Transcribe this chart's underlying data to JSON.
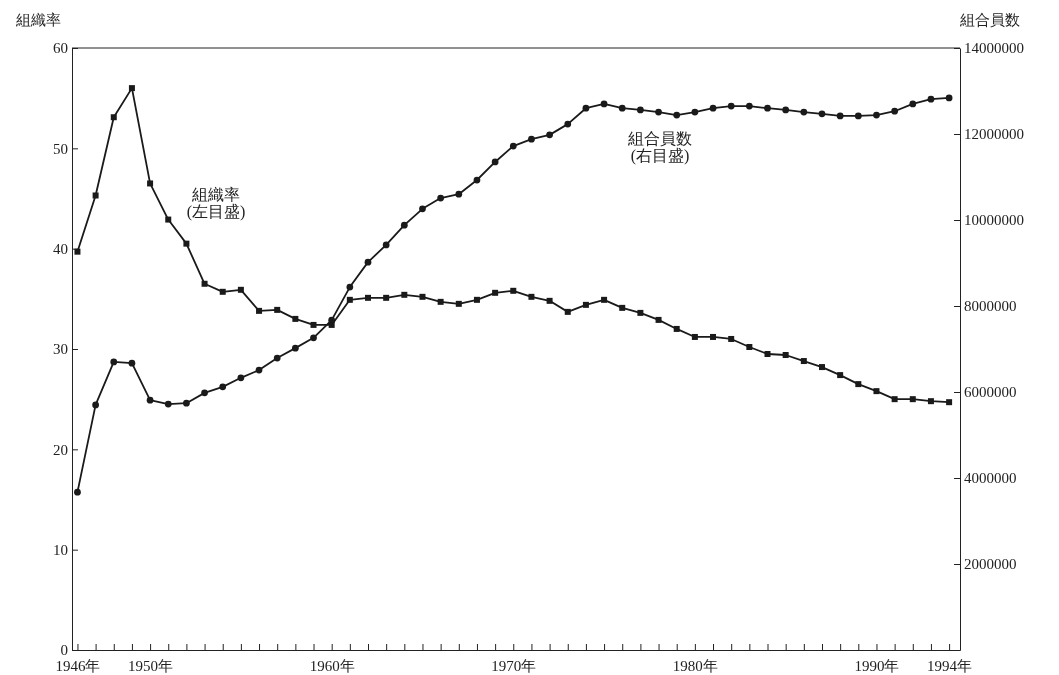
{
  "chart_data": {
    "type": "line",
    "ylabel": "組織率",
    "y2label": "組合員数",
    "x": [
      1946,
      1947,
      1948,
      1949,
      1950,
      1951,
      1952,
      1953,
      1954,
      1955,
      1956,
      1957,
      1958,
      1959,
      1960,
      1961,
      1962,
      1963,
      1964,
      1965,
      1966,
      1967,
      1968,
      1969,
      1970,
      1971,
      1972,
      1973,
      1974,
      1975,
      1976,
      1977,
      1978,
      1979,
      1980,
      1981,
      1982,
      1983,
      1984,
      1985,
      1986,
      1987,
      1988,
      1989,
      1990,
      1991,
      1992,
      1993,
      1994
    ],
    "series": [
      {
        "color": "#1a1a1a",
        "marker": "square",
        "axis": "y",
        "values": [
          39.7,
          45.3,
          53.1,
          56.0,
          46.5,
          42.9,
          40.5,
          36.5,
          35.7,
          35.9,
          33.8,
          33.9,
          33.0,
          32.4,
          32.4,
          34.9,
          35.1,
          35.1,
          35.4,
          35.2,
          34.7,
          34.5,
          34.9,
          35.6,
          35.8,
          35.2,
          34.8,
          33.7,
          34.4,
          34.9,
          34.1,
          33.6,
          32.9,
          32.0,
          31.2,
          31.2,
          31.0,
          30.2,
          29.5,
          29.4,
          28.8,
          28.2,
          27.4,
          26.5,
          25.8,
          25.0,
          25.0,
          24.8,
          24.7
        ]
      },
      {
        "color": "#1a1a1a",
        "marker": "circle",
        "axis": "y2",
        "values": [
          3670000,
          5700000,
          6700000,
          6670000,
          5810000,
          5720000,
          5740000,
          5980000,
          6120000,
          6330000,
          6510000,
          6790000,
          7020000,
          7260000,
          7670000,
          8440000,
          9020000,
          9420000,
          9880000,
          10260000,
          10510000,
          10600000,
          10930000,
          11350000,
          11720000,
          11880000,
          11980000,
          12230000,
          12600000,
          12700000,
          12600000,
          12560000,
          12510000,
          12440000,
          12510000,
          12600000,
          12650000,
          12650000,
          12600000,
          12560000,
          12510000,
          12470000,
          12420000,
          12420000,
          12440000,
          12530000,
          12700000,
          12810000,
          12840000
        ]
      }
    ],
    "xlim": [
      1945.7,
      1994.6
    ],
    "xticks": [
      {
        "value": 1946,
        "label": "1946年"
      },
      {
        "value": 1947,
        "label": null
      },
      {
        "value": 1948,
        "label": null
      },
      {
        "value": 1949,
        "label": null
      },
      {
        "value": 1950,
        "label": "1950年"
      },
      {
        "value": 1951,
        "label": null
      },
      {
        "value": 1952,
        "label": null
      },
      {
        "value": 1953,
        "label": null
      },
      {
        "value": 1954,
        "label": null
      },
      {
        "value": 1955,
        "label": null
      },
      {
        "value": 1956,
        "label": null
      },
      {
        "value": 1957,
        "label": null
      },
      {
        "value": 1958,
        "label": null
      },
      {
        "value": 1959,
        "label": null
      },
      {
        "value": 1960,
        "label": "1960年"
      },
      {
        "value": 1961,
        "label": null
      },
      {
        "value": 1962,
        "label": null
      },
      {
        "value": 1963,
        "label": null
      },
      {
        "value": 1964,
        "label": null
      },
      {
        "value": 1965,
        "label": null
      },
      {
        "value": 1966,
        "label": null
      },
      {
        "value": 1967,
        "label": null
      },
      {
        "value": 1968,
        "label": null
      },
      {
        "value": 1969,
        "label": null
      },
      {
        "value": 1970,
        "label": "1970年"
      },
      {
        "value": 1971,
        "label": null
      },
      {
        "value": 1972,
        "label": null
      },
      {
        "value": 1973,
        "label": null
      },
      {
        "value": 1974,
        "label": null
      },
      {
        "value": 1975,
        "label": null
      },
      {
        "value": 1976,
        "label": null
      },
      {
        "value": 1977,
        "label": null
      },
      {
        "value": 1978,
        "label": null
      },
      {
        "value": 1979,
        "label": null
      },
      {
        "value": 1980,
        "label": "1980年"
      },
      {
        "value": 1981,
        "label": null
      },
      {
        "value": 1982,
        "label": null
      },
      {
        "value": 1983,
        "label": null
      },
      {
        "value": 1984,
        "label": null
      },
      {
        "value": 1985,
        "label": null
      },
      {
        "value": 1986,
        "label": null
      },
      {
        "value": 1987,
        "label": null
      },
      {
        "value": 1988,
        "label": null
      },
      {
        "value": 1989,
        "label": null
      },
      {
        "value": 1990,
        "label": "1990年"
      },
      {
        "value": 1991,
        "label": null
      },
      {
        "value": 1992,
        "label": null
      },
      {
        "value": 1993,
        "label": null
      },
      {
        "value": 1994,
        "label": "1994年"
      }
    ],
    "ylim": [
      0,
      60
    ],
    "yticks": [
      0,
      10,
      20,
      30,
      40,
      50,
      60
    ],
    "y2lim": [
      0,
      14000000
    ],
    "y2ticks": [
      2000000,
      4000000,
      6000000,
      8000000,
      10000000,
      12000000,
      14000000
    ],
    "grid": false,
    "line_style": "solid",
    "annotations": [
      "組織率\n(左目盛)",
      "組合員数\n(右目盛)"
    ]
  }
}
